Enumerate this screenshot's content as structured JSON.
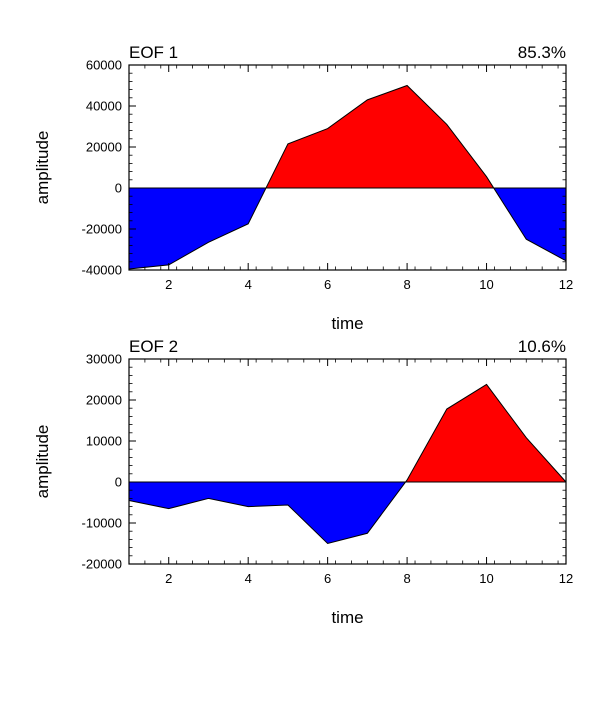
{
  "chart_data": [
    {
      "type": "area",
      "title": "EOF 1",
      "percent_label": "85.3%",
      "xlabel": "time",
      "ylabel": "amplitude",
      "xlim": [
        1,
        12
      ],
      "ylim": [
        -40000,
        60000
      ],
      "x_ticks": [
        2,
        4,
        6,
        8,
        10,
        12
      ],
      "y_ticks": [
        -40000,
        -20000,
        0,
        20000,
        40000,
        60000
      ],
      "x": [
        1,
        2,
        3,
        4,
        5,
        6,
        7,
        8,
        9,
        10,
        11,
        12
      ],
      "values": [
        -39500,
        -37500,
        -26500,
        -17500,
        21500,
        29000,
        43000,
        50000,
        31000,
        5500,
        -25000,
        -35500
      ],
      "positive_color": "#ff0000",
      "negative_color": "#0000ff"
    },
    {
      "type": "area",
      "title": "EOF 2",
      "percent_label": "10.6%",
      "xlabel": "time",
      "ylabel": "amplitude",
      "xlim": [
        1,
        12
      ],
      "ylim": [
        -20000,
        30000
      ],
      "x_ticks": [
        2,
        4,
        6,
        8,
        10,
        12
      ],
      "y_ticks": [
        -20000,
        -10000,
        0,
        10000,
        20000,
        30000
      ],
      "x": [
        1,
        2,
        3,
        4,
        5,
        6,
        7,
        8,
        9,
        10,
        11,
        12
      ],
      "values": [
        -4500,
        -6500,
        -4000,
        -6000,
        -5600,
        -15000,
        -12500,
        500,
        17800,
        23800,
        10800,
        0
      ],
      "positive_color": "#ff0000",
      "negative_color": "#0000ff"
    }
  ]
}
